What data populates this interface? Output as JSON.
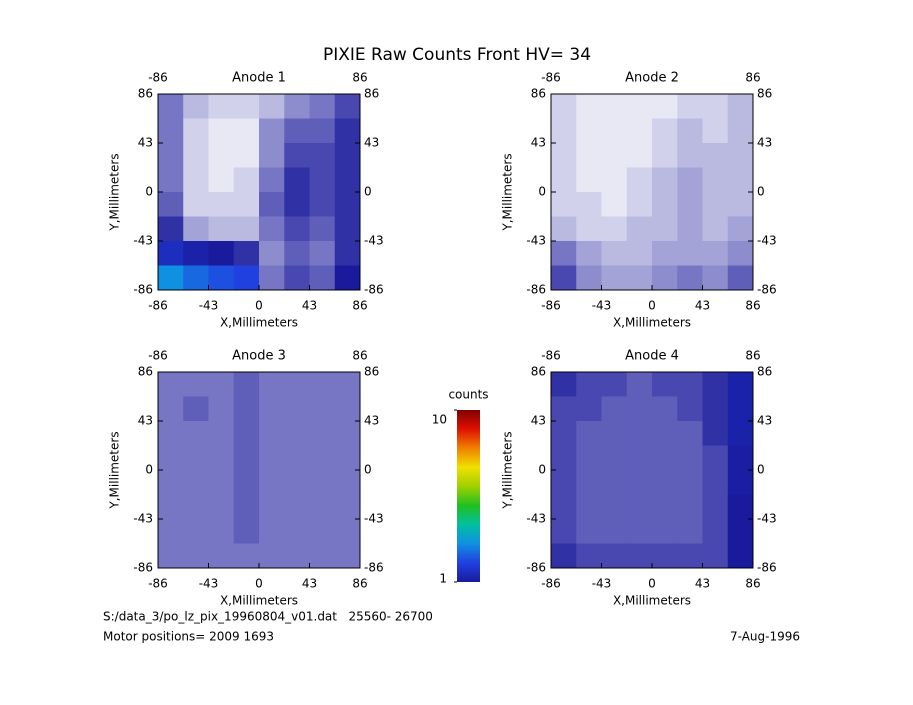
{
  "title": "PIXIE Raw Counts Front HV= 34",
  "chart_data": [
    {
      "type": "heatmap",
      "title": "Anode 1",
      "xlabel": "X,Millimeters",
      "ylabel": "Y,Millimeters",
      "xlim": [
        -86,
        86
      ],
      "ylim": [
        -86,
        86
      ],
      "xticks": [
        -86,
        -43,
        0,
        43,
        86
      ],
      "yticks": [
        -86,
        -43,
        0,
        43,
        86
      ],
      "x2ticks": [
        -86,
        86
      ],
      "y2ticks": [
        -86,
        -43,
        0,
        43,
        86
      ],
      "values": [
        [
          0.6,
          0.3,
          0.2,
          0.2,
          0.3,
          0.5,
          0.6,
          0.8
        ],
        [
          0.6,
          0.2,
          0.1,
          0.1,
          0.5,
          0.7,
          0.7,
          0.9
        ],
        [
          0.6,
          0.2,
          0.1,
          0.1,
          0.5,
          0.8,
          0.8,
          0.9
        ],
        [
          0.6,
          0.2,
          0.1,
          0.2,
          0.6,
          0.9,
          0.8,
          0.9
        ],
        [
          0.7,
          0.2,
          0.2,
          0.2,
          0.7,
          0.9,
          0.8,
          0.9
        ],
        [
          0.9,
          0.4,
          0.3,
          0.3,
          0.6,
          0.8,
          0.7,
          0.9
        ],
        [
          1.5,
          1.2,
          1.0,
          0.9,
          0.5,
          0.7,
          0.6,
          0.9
        ],
        [
          3,
          2.5,
          2.2,
          2,
          0.6,
          0.8,
          0.7,
          1
        ]
      ]
    },
    {
      "type": "heatmap",
      "title": "Anode 2",
      "xlabel": "X,Millimeters",
      "ylabel": "Y,Millimeters",
      "xlim": [
        -86,
        86
      ],
      "ylim": [
        -86,
        86
      ],
      "xticks": [
        -86,
        -43,
        0,
        43,
        86
      ],
      "yticks": [
        -86,
        -43,
        0,
        43,
        86
      ],
      "x2ticks": [
        -86,
        86
      ],
      "y2ticks": [
        -86,
        -43,
        0,
        43,
        86
      ],
      "values": [
        [
          0.2,
          0.1,
          0.1,
          0.1,
          0.1,
          0.2,
          0.2,
          0.3
        ],
        [
          0.2,
          0.1,
          0.1,
          0.1,
          0.2,
          0.3,
          0.2,
          0.3
        ],
        [
          0.2,
          0.1,
          0.1,
          0.1,
          0.2,
          0.3,
          0.3,
          0.3
        ],
        [
          0.2,
          0.1,
          0.1,
          0.2,
          0.3,
          0.4,
          0.3,
          0.3
        ],
        [
          0.2,
          0.2,
          0.1,
          0.2,
          0.3,
          0.4,
          0.3,
          0.3
        ],
        [
          0.3,
          0.2,
          0.2,
          0.3,
          0.3,
          0.4,
          0.3,
          0.4
        ],
        [
          0.6,
          0.4,
          0.3,
          0.3,
          0.4,
          0.4,
          0.4,
          0.5
        ],
        [
          0.8,
          0.5,
          0.4,
          0.4,
          0.5,
          0.6,
          0.5,
          0.7
        ]
      ]
    },
    {
      "type": "heatmap",
      "title": "Anode 3",
      "xlabel": "X,Millimeters",
      "ylabel": "Y,Millimeters",
      "xlim": [
        -86,
        86
      ],
      "ylim": [
        -86,
        86
      ],
      "xticks": [
        -86,
        -43,
        0,
        43,
        86
      ],
      "yticks": [
        -86,
        -43,
        0,
        43,
        86
      ],
      "x2ticks": [
        -86,
        86
      ],
      "y2ticks": [
        -86,
        -43,
        0,
        43,
        86
      ],
      "values": [
        [
          0.6,
          0.6,
          0.6,
          0.7,
          0.6,
          0.6,
          0.6,
          0.6
        ],
        [
          0.6,
          0.7,
          0.6,
          0.7,
          0.6,
          0.6,
          0.6,
          0.6
        ],
        [
          0.6,
          0.6,
          0.6,
          0.7,
          0.6,
          0.6,
          0.6,
          0.6
        ],
        [
          0.6,
          0.6,
          0.6,
          0.7,
          0.6,
          0.6,
          0.6,
          0.6
        ],
        [
          0.6,
          0.6,
          0.6,
          0.7,
          0.6,
          0.6,
          0.6,
          0.6
        ],
        [
          0.6,
          0.6,
          0.6,
          0.7,
          0.6,
          0.6,
          0.6,
          0.6
        ],
        [
          0.6,
          0.6,
          0.6,
          0.7,
          0.6,
          0.6,
          0.6,
          0.6
        ],
        [
          0.6,
          0.6,
          0.6,
          0.6,
          0.6,
          0.6,
          0.6,
          0.6
        ]
      ]
    },
    {
      "type": "heatmap",
      "title": "Anode 4",
      "xlabel": "X,Millimeters",
      "ylabel": "Y,Millimeters",
      "xlim": [
        -86,
        86
      ],
      "ylim": [
        -86,
        86
      ],
      "xticks": [
        -86,
        -43,
        0,
        43,
        86
      ],
      "yticks": [
        -86,
        -43,
        0,
        43,
        86
      ],
      "x2ticks": [
        -86,
        86
      ],
      "y2ticks": [
        -86,
        -43,
        0,
        43,
        86
      ],
      "values": [
        [
          0.9,
          0.8,
          0.8,
          0.7,
          0.8,
          0.8,
          0.9,
          1.2
        ],
        [
          0.8,
          0.8,
          0.7,
          0.7,
          0.7,
          0.8,
          0.9,
          1.2
        ],
        [
          0.8,
          0.7,
          0.7,
          0.7,
          0.7,
          0.7,
          0.9,
          1.2
        ],
        [
          0.8,
          0.7,
          0.7,
          0.7,
          0.7,
          0.7,
          0.8,
          1.1
        ],
        [
          0.8,
          0.7,
          0.7,
          0.7,
          0.7,
          0.7,
          0.8,
          1.1
        ],
        [
          0.8,
          0.7,
          0.7,
          0.7,
          0.7,
          0.7,
          0.8,
          1.0
        ],
        [
          0.8,
          0.7,
          0.7,
          0.7,
          0.7,
          0.7,
          0.8,
          1.0
        ],
        [
          0.9,
          0.8,
          0.8,
          0.8,
          0.8,
          0.8,
          0.8,
          1.0
        ]
      ]
    }
  ],
  "colorbar": {
    "label": "counts",
    "zlim": [
      1,
      10
    ],
    "zticks": [
      1,
      10
    ],
    "colors": [
      "#1a1a9c",
      "#2040e0",
      "#1090e0",
      "#00c0a0",
      "#20c020",
      "#a0d000",
      "#f0e000",
      "#f08000",
      "#e01000",
      "#800000"
    ]
  },
  "footer": {
    "file": "S:/data_3/po_lz_pix_19960804_v01.dat   25560- 26700",
    "motor": "Motor positions= 2009 1693",
    "date": "7-Aug-1996"
  }
}
